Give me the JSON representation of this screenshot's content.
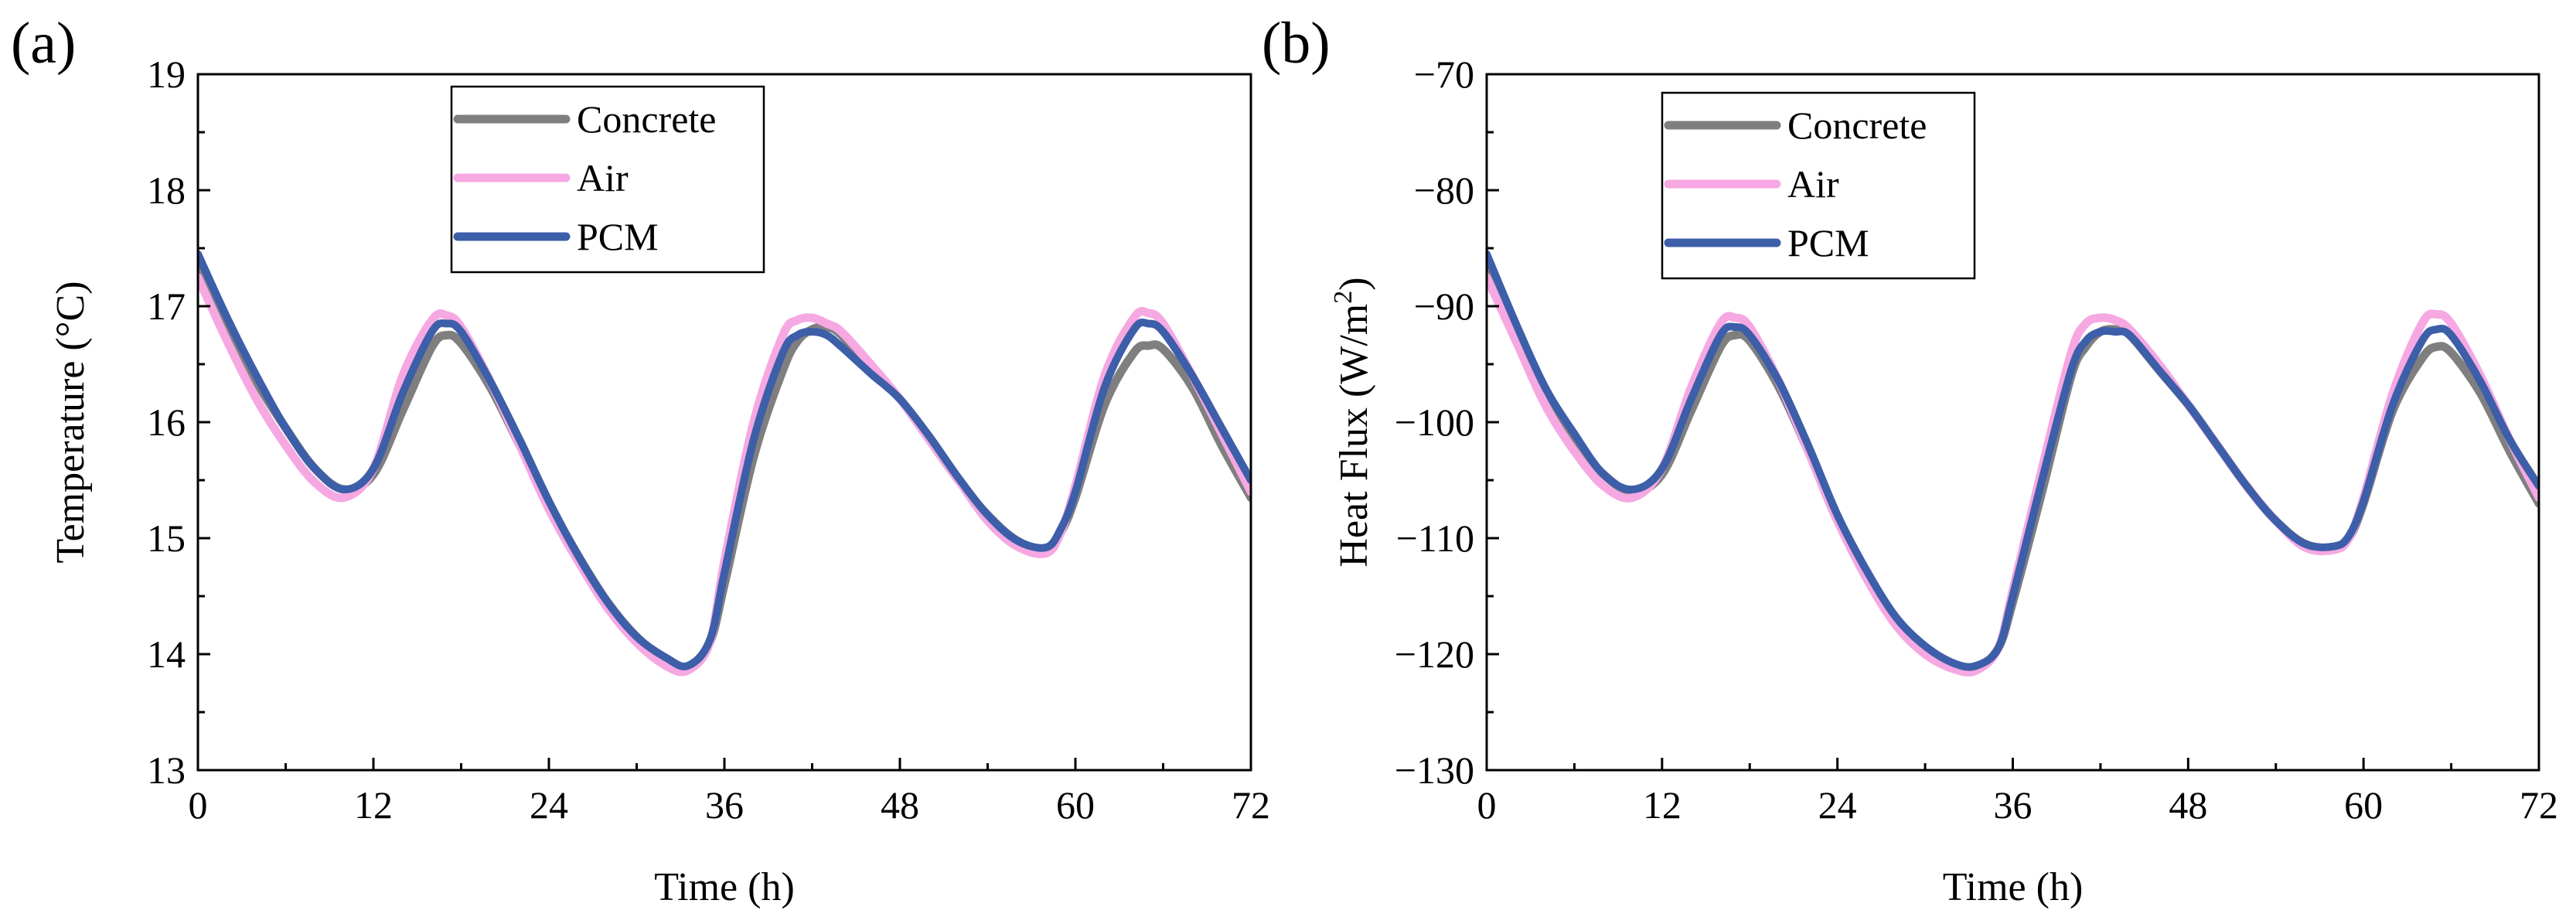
{
  "chart_data": [
    {
      "panel": "(a)",
      "type": "line",
      "xlabel": "Time (h)",
      "ylabel": "Temperature (°C)",
      "xlim": [
        0,
        72
      ],
      "ylim": [
        13,
        19
      ],
      "xticks": [
        0,
        12,
        24,
        36,
        48,
        60,
        72
      ],
      "yticks": [
        13,
        14,
        15,
        16,
        17,
        18,
        19
      ],
      "legend": "top-left",
      "series": [
        {
          "name": "Concrete",
          "color": "#7f7f7f",
          "x": [
            0,
            2,
            4,
            6,
            8,
            10,
            12,
            14,
            16,
            17,
            18,
            20,
            22,
            24,
            26,
            28,
            30,
            32,
            33.5,
            35,
            36,
            38,
            40,
            41,
            42,
            43,
            44,
            46,
            48,
            50,
            52,
            54,
            56,
            58,
            59,
            60,
            62,
            64,
            65,
            66,
            68,
            70,
            72
          ],
          "y": [
            17.35,
            16.85,
            16.35,
            15.95,
            15.6,
            15.42,
            15.55,
            16.1,
            16.65,
            16.75,
            16.68,
            16.3,
            15.8,
            15.3,
            14.85,
            14.45,
            14.15,
            13.95,
            13.88,
            14.1,
            14.6,
            15.7,
            16.45,
            16.7,
            16.8,
            16.82,
            16.75,
            16.45,
            16.2,
            15.85,
            15.5,
            15.2,
            14.98,
            14.9,
            15.05,
            15.35,
            16.15,
            16.6,
            16.66,
            16.63,
            16.3,
            15.8,
            15.35
          ]
        },
        {
          "name": "Air",
          "color": "#f6a8e2",
          "x": [
            0,
            2,
            4,
            6,
            8,
            10,
            12,
            14,
            16,
            17,
            18,
            20,
            22,
            24,
            26,
            28,
            30,
            32,
            33.5,
            35,
            36,
            38,
            40,
            41,
            42,
            43,
            44,
            46,
            48,
            50,
            52,
            54,
            56,
            58,
            59,
            60,
            62,
            64,
            65,
            66,
            68,
            70,
            72
          ],
          "y": [
            17.25,
            16.7,
            16.2,
            15.8,
            15.48,
            15.35,
            15.6,
            16.4,
            16.88,
            16.92,
            16.82,
            16.35,
            15.8,
            15.25,
            14.8,
            14.4,
            14.1,
            13.9,
            13.86,
            14.1,
            14.8,
            16.0,
            16.75,
            16.88,
            16.9,
            16.85,
            16.78,
            16.5,
            16.2,
            15.85,
            15.5,
            15.15,
            14.93,
            14.87,
            15.05,
            15.45,
            16.4,
            16.9,
            16.94,
            16.85,
            16.4,
            15.9,
            15.4
          ]
        },
        {
          "name": "PCM",
          "color": "#3d5ea8",
          "x": [
            0,
            2,
            4,
            6,
            8,
            10,
            12,
            14,
            16,
            17,
            18,
            20,
            22,
            24,
            26,
            28,
            30,
            32,
            33.5,
            35,
            36,
            38,
            40,
            41,
            42,
            43,
            44,
            46,
            48,
            50,
            52,
            54,
            56,
            58,
            59,
            60,
            62,
            64,
            65,
            66,
            68,
            70,
            72
          ],
          "y": [
            17.45,
            16.9,
            16.4,
            15.95,
            15.6,
            15.42,
            15.6,
            16.25,
            16.78,
            16.85,
            16.78,
            16.35,
            15.85,
            15.32,
            14.85,
            14.45,
            14.15,
            13.97,
            13.9,
            14.12,
            14.7,
            15.85,
            16.6,
            16.75,
            16.78,
            16.75,
            16.65,
            16.42,
            16.2,
            15.88,
            15.52,
            15.2,
            14.98,
            14.92,
            15.08,
            15.4,
            16.3,
            16.8,
            16.85,
            16.78,
            16.4,
            15.95,
            15.5
          ]
        }
      ]
    },
    {
      "panel": "(b)",
      "type": "line",
      "xlabel": "Time (h)",
      "ylabel": "Heat Flux (W/m²)",
      "ylabel_main": "Heat Flux (W/m",
      "ylabel_sup": "2",
      "ylabel_close": ")",
      "xlim": [
        0,
        72
      ],
      "ylim": [
        -130,
        -70
      ],
      "xticks": [
        0,
        12,
        24,
        36,
        48,
        60,
        72
      ],
      "yticks": [
        -130,
        -120,
        -110,
        -100,
        -90,
        -80,
        -70
      ],
      "ytick_labels": [
        "−130",
        "−120",
        "−110",
        "−100",
        "−90",
        "−80",
        "−70"
      ],
      "legend": "top-left",
      "series": [
        {
          "name": "Concrete",
          "color": "#7f7f7f",
          "x": [
            0,
            2,
            4,
            6,
            8,
            10,
            12,
            14,
            16,
            17,
            18,
            20,
            22,
            24,
            26,
            28,
            30,
            32,
            33.5,
            35,
            36,
            38,
            40,
            41,
            42,
            43,
            44,
            46,
            48,
            50,
            52,
            54,
            56,
            58,
            59,
            60,
            62,
            64,
            65,
            66,
            68,
            70,
            72
          ],
          "y": [
            -86.5,
            -92,
            -97.5,
            -101.5,
            -104.5,
            -106,
            -104.5,
            -99,
            -93.5,
            -92.5,
            -93,
            -97,
            -102.5,
            -108.5,
            -113,
            -117,
            -119.5,
            -121,
            -121.2,
            -119.5,
            -115.5,
            -106,
            -96,
            -93.5,
            -92.2,
            -92,
            -92.5,
            -95.5,
            -98.5,
            -102,
            -105.5,
            -108.5,
            -110.5,
            -110.8,
            -110,
            -107,
            -99,
            -94.5,
            -93.5,
            -94,
            -97.5,
            -102.5,
            -107
          ]
        },
        {
          "name": "Air",
          "color": "#f6a8e2",
          "x": [
            0,
            2,
            4,
            6,
            8,
            10,
            12,
            14,
            16,
            17,
            18,
            20,
            22,
            24,
            26,
            28,
            30,
            32,
            33.5,
            35,
            36,
            38,
            40,
            41,
            42,
            43,
            44,
            46,
            48,
            50,
            52,
            54,
            56,
            58,
            59,
            60,
            62,
            64,
            65,
            66,
            68,
            70,
            72
          ],
          "y": [
            -87.5,
            -93,
            -98.5,
            -102.5,
            -105.5,
            -106.5,
            -104,
            -97,
            -91.5,
            -91,
            -91.8,
            -96.5,
            -102.5,
            -108.5,
            -113.5,
            -117.5,
            -120,
            -121.3,
            -121.4,
            -119.5,
            -114.5,
            -104,
            -94,
            -91.5,
            -91,
            -91.2,
            -92,
            -95,
            -98.5,
            -102,
            -105.5,
            -108.5,
            -110.8,
            -111,
            -110,
            -106.5,
            -97.5,
            -91.5,
            -90.7,
            -91.5,
            -96,
            -101.5,
            -106.5
          ]
        },
        {
          "name": "PCM",
          "color": "#3d5ea8",
          "x": [
            0,
            2,
            4,
            6,
            8,
            10,
            12,
            14,
            16,
            17,
            18,
            20,
            22,
            24,
            26,
            28,
            30,
            32,
            33.5,
            35,
            36,
            38,
            40,
            41,
            42,
            43,
            44,
            46,
            48,
            50,
            52,
            54,
            56,
            58,
            59,
            60,
            62,
            64,
            65,
            66,
            68,
            70,
            72
          ],
          "y": [
            -85.5,
            -91.5,
            -97,
            -101,
            -104.5,
            -105.8,
            -104,
            -98,
            -92.5,
            -91.8,
            -92.5,
            -96.5,
            -102,
            -108,
            -112.8,
            -116.8,
            -119.3,
            -120.8,
            -121,
            -119.5,
            -115,
            -105,
            -95.5,
            -93,
            -92.2,
            -92.2,
            -92.5,
            -95.5,
            -98.5,
            -102,
            -105.5,
            -108.5,
            -110.5,
            -110.7,
            -109.8,
            -106.8,
            -98.5,
            -93,
            -92,
            -92.5,
            -96.5,
            -101.5,
            -105.5
          ]
        }
      ]
    }
  ]
}
